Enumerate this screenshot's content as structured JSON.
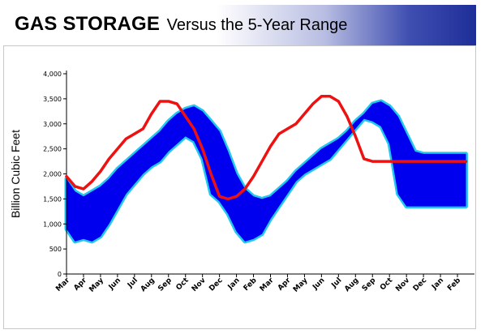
{
  "header": {
    "title_main": "GAS STORAGE",
    "title_sub": "Versus the 5-Year Range"
  },
  "colors": {
    "band_fill": "#0000ee",
    "band_edge": "#22c8f0",
    "line": "#ee1111",
    "banner_gradient_end": "#1e2e98"
  },
  "chart_data": {
    "type": "area",
    "title": "GAS STORAGE Versus the 5-Year Range",
    "ylabel": "Billion Cubic Feet",
    "xlabel": "",
    "ylim": [
      0,
      4000
    ],
    "yticks": [
      "0",
      "500",
      "1,000",
      "1,500",
      "2,000",
      "2,500",
      "3,000",
      "3,500",
      "4,000"
    ],
    "yticks_values": [
      0,
      500,
      1000,
      1500,
      2000,
      2500,
      3000,
      3500,
      4000
    ],
    "x_tick_labels": [
      "Mar",
      "Apr",
      "May",
      "Jun",
      "Jul",
      "Aug",
      "Sep",
      "Oct",
      "Nov",
      "Dec",
      "Jan",
      "Feb",
      "Mar",
      "Apr",
      "May",
      "Jun",
      "Jul",
      "Aug",
      "Sep",
      "Oct",
      "Nov",
      "Dec",
      "Jan",
      "Feb"
    ],
    "x_tick_positions": [
      0,
      2,
      4,
      6,
      8,
      10,
      12,
      14,
      16,
      18,
      20,
      22,
      24,
      26,
      28,
      30,
      32,
      34,
      36,
      38,
      40,
      42,
      44,
      46
    ],
    "x_range": [
      0,
      48
    ],
    "grid": false,
    "legend": "none",
    "series": [
      {
        "role": "5-year range maximum",
        "x": [
          0,
          1,
          2,
          3,
          4,
          5,
          6,
          7,
          8,
          9,
          10,
          11,
          12,
          13,
          14,
          15,
          16,
          17,
          18,
          19,
          20,
          21,
          22,
          23,
          24,
          25,
          26,
          27,
          28,
          29,
          30,
          31,
          32,
          33,
          34,
          35,
          36,
          37,
          38,
          39,
          40,
          41,
          42,
          43,
          44,
          45,
          46,
          47
        ],
        "values": [
          1900,
          1650,
          1550,
          1650,
          1750,
          1900,
          2100,
          2250,
          2400,
          2550,
          2700,
          2850,
          3050,
          3200,
          3300,
          3350,
          3250,
          3050,
          2850,
          2450,
          2000,
          1700,
          1550,
          1500,
          1550,
          1700,
          1850,
          2050,
          2200,
          2350,
          2500,
          2600,
          2700,
          2850,
          3050,
          3200,
          3400,
          3450,
          3350,
          3150,
          2800,
          2450,
          2400,
          2400,
          2400,
          2400,
          2400,
          2400
        ]
      },
      {
        "role": "5-year range minimum",
        "x": [
          0,
          1,
          2,
          3,
          4,
          5,
          6,
          7,
          8,
          9,
          10,
          11,
          12,
          13,
          14,
          15,
          16,
          17,
          18,
          19,
          20,
          21,
          22,
          23,
          24,
          25,
          26,
          27,
          28,
          29,
          30,
          31,
          32,
          33,
          34,
          35,
          36,
          37,
          38,
          39,
          40,
          41,
          42,
          43,
          44,
          45,
          46,
          47
        ],
        "values": [
          900,
          650,
          700,
          650,
          750,
          1000,
          1300,
          1600,
          1800,
          2000,
          2150,
          2250,
          2450,
          2600,
          2750,
          2650,
          2300,
          1600,
          1450,
          1200,
          850,
          650,
          700,
          800,
          1100,
          1350,
          1600,
          1850,
          2000,
          2100,
          2200,
          2300,
          2500,
          2700,
          2900,
          3100,
          3050,
          2950,
          2600,
          1600,
          1350,
          1350,
          1350,
          1350,
          1350,
          1350,
          1350,
          1350
        ]
      },
      {
        "role": "current storage",
        "x": [
          0,
          1,
          2,
          3,
          4,
          5,
          6,
          7,
          8,
          9,
          10,
          11,
          12,
          13,
          14,
          15,
          16,
          17,
          18,
          19,
          20,
          21,
          22,
          23,
          24,
          25,
          26,
          27,
          28,
          29,
          30,
          31,
          32,
          33,
          34,
          35,
          36,
          37,
          38,
          39,
          40,
          41,
          42,
          43,
          44,
          45,
          46,
          47
        ],
        "values": [
          1950,
          1750,
          1700,
          1850,
          2050,
          2300,
          2500,
          2700,
          2800,
          2900,
          3200,
          3450,
          3450,
          3400,
          3150,
          2900,
          2500,
          2000,
          1550,
          1500,
          1550,
          1700,
          1950,
          2250,
          2550,
          2800,
          2900,
          3000,
          3200,
          3400,
          3550,
          3550,
          3450,
          3150,
          2750,
          2300,
          2250,
          2250,
          2250,
          2250,
          2250,
          2250,
          2250,
          2250,
          2250,
          2250,
          2250,
          2250
        ]
      }
    ]
  }
}
